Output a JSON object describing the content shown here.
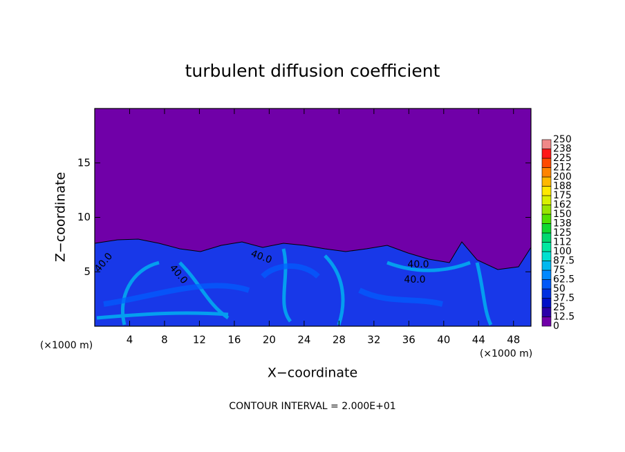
{
  "chart_data": {
    "type": "heatmap",
    "title": "turbulent diffusion coefficient",
    "x_label": "X−coordinate",
    "y_label": "Z−coordinate",
    "unit_labels": [
      "(×1000 m)",
      "(×1000 m)"
    ],
    "footer": "CONTOUR INTERVAL = 2.000E+01",
    "contour_labels": [
      "40.0",
      "40.0",
      "40.0",
      "40.0",
      "40.0"
    ],
    "xlim": [
      0,
      50
    ],
    "xticks": [
      4,
      8,
      12,
      16,
      20,
      24,
      28,
      32,
      36,
      40,
      44,
      48
    ],
    "ylim": [
      0,
      20
    ],
    "yticks": [
      5,
      10,
      15
    ],
    "colorbar": {
      "ticks": [
        0,
        12.5,
        25,
        37.5,
        50,
        62.5,
        75,
        87.5,
        100,
        {
          "value": 112.5,
          "label": "112"
        },
        125,
        {
          "value": 137.5,
          "label": "138"
        },
        150,
        {
          "value": 162.5,
          "label": "162"
        },
        175,
        {
          "value": 187.5,
          "label": "188"
        },
        200,
        {
          "value": 212.5,
          "label": "212"
        },
        225,
        {
          "value": 237.5,
          "label": "238"
        },
        250
      ],
      "colors": [
        "#7000a8",
        "#2a00a8",
        "#0010c8",
        "#0030e0",
        "#0058f8",
        "#0088ff",
        "#00b8f0",
        "#00e0d0",
        "#00e8a0",
        "#00d870",
        "#10d830",
        "#50e000",
        "#98e400",
        "#d8f000",
        "#ffe800",
        "#ffb800",
        "#ff8400",
        "#ff4a00",
        "#ff1818",
        "#f08888"
      ]
    }
  }
}
